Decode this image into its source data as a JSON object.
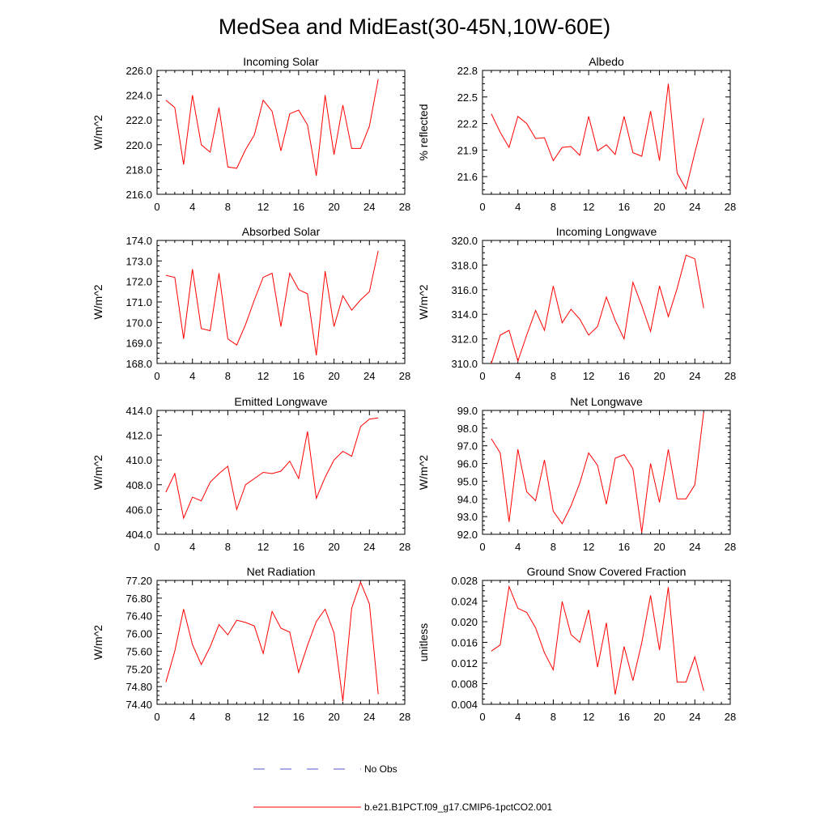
{
  "page": {
    "title": "MedSea and MidEast(30-45N,10W-60E)"
  },
  "legend": [
    {
      "label": "No Obs",
      "color": "#5555cc",
      "style": "dashed"
    },
    {
      "label": "b.e21.B1PCT.f09_g17.CMIP6-1pctCO2.001",
      "color": "#ff0000",
      "style": "solid"
    }
  ],
  "chart_data": [
    {
      "type": "line",
      "title": "Incoming Solar",
      "ylabel": "W/m^2",
      "xlim": [
        0,
        28
      ],
      "ylim": [
        216,
        226
      ],
      "xticks": [
        "0",
        "4",
        "8",
        "12",
        "16",
        "20",
        "24",
        "28"
      ],
      "yticks": [
        "216.0",
        "218.0",
        "220.0",
        "222.0",
        "224.0",
        "226.0"
      ],
      "series": [
        {
          "color": "#ff0000",
          "x": [
            1,
            2,
            3,
            4,
            5,
            6,
            7,
            8,
            9,
            10,
            11,
            12,
            13,
            14,
            15,
            16,
            17,
            18,
            19,
            20,
            21,
            22,
            23,
            24,
            25
          ],
          "y": [
            223.6,
            223.0,
            218.4,
            224.0,
            220.0,
            219.4,
            223.0,
            218.2,
            218.1,
            219.6,
            220.8,
            223.6,
            222.7,
            219.5,
            222.5,
            222.8,
            221.6,
            217.5,
            224.0,
            219.2,
            223.2,
            219.7,
            219.7,
            221.5,
            225.3
          ]
        }
      ]
    },
    {
      "type": "line",
      "title": "Albedo",
      "ylabel": "% reflected",
      "xlim": [
        0,
        28
      ],
      "ylim": [
        21.4,
        22.8
      ],
      "xticks": [
        "0",
        "4",
        "8",
        "12",
        "16",
        "20",
        "24",
        "28"
      ],
      "yticks": [
        "21.6",
        "21.9",
        "22.2",
        "22.5",
        "22.8"
      ],
      "series": [
        {
          "color": "#ff0000",
          "x": [
            1,
            2,
            3,
            4,
            5,
            6,
            7,
            8,
            9,
            10,
            11,
            12,
            13,
            14,
            15,
            16,
            17,
            18,
            19,
            20,
            21,
            22,
            23,
            24,
            25
          ],
          "y": [
            22.31,
            22.1,
            21.93,
            22.28,
            22.2,
            22.03,
            22.04,
            21.78,
            21.93,
            21.94,
            21.84,
            22.28,
            21.89,
            21.96,
            21.85,
            22.28,
            21.87,
            21.83,
            22.34,
            21.78,
            22.65,
            21.64,
            21.46,
            21.87,
            22.26
          ]
        }
      ]
    },
    {
      "type": "line",
      "title": "Absorbed Solar",
      "ylabel": "W/m^2",
      "xlim": [
        0,
        28
      ],
      "ylim": [
        168,
        174
      ],
      "xticks": [
        "0",
        "4",
        "8",
        "12",
        "16",
        "20",
        "24",
        "28"
      ],
      "yticks": [
        "168.0",
        "169.0",
        "170.0",
        "171.0",
        "172.0",
        "173.0",
        "174.0"
      ],
      "series": [
        {
          "color": "#ff0000",
          "x": [
            1,
            2,
            3,
            4,
            5,
            6,
            7,
            8,
            9,
            10,
            11,
            12,
            13,
            14,
            15,
            16,
            17,
            18,
            19,
            20,
            21,
            22,
            23,
            24,
            25
          ],
          "y": [
            172.3,
            172.2,
            169.2,
            172.6,
            169.7,
            169.6,
            172.4,
            169.2,
            168.9,
            169.9,
            171.1,
            172.2,
            172.4,
            169.8,
            172.4,
            171.6,
            171.4,
            168.4,
            172.5,
            169.8,
            171.3,
            170.6,
            171.1,
            171.5,
            173.5
          ]
        }
      ]
    },
    {
      "type": "line",
      "title": "Incoming Longwave",
      "ylabel": "W/m^2",
      "xlim": [
        0,
        28
      ],
      "ylim": [
        310,
        320
      ],
      "xticks": [
        "0",
        "4",
        "8",
        "12",
        "16",
        "20",
        "24",
        "28"
      ],
      "yticks": [
        "310.0",
        "312.0",
        "314.0",
        "316.0",
        "318.0",
        "320.0"
      ],
      "series": [
        {
          "color": "#ff0000",
          "x": [
            1,
            2,
            3,
            4,
            5,
            6,
            7,
            8,
            9,
            10,
            11,
            12,
            13,
            14,
            15,
            16,
            17,
            18,
            19,
            20,
            21,
            22,
            23,
            24,
            25
          ],
          "y": [
            310.0,
            312.3,
            312.7,
            310.2,
            312.3,
            314.3,
            312.7,
            316.3,
            313.3,
            314.4,
            313.6,
            312.3,
            313.0,
            315.4,
            313.5,
            312.0,
            316.6,
            314.7,
            312.6,
            316.3,
            313.8,
            316.1,
            318.8,
            318.5,
            314.5
          ]
        }
      ]
    },
    {
      "type": "line",
      "title": "Emitted Longwave",
      "ylabel": "W/m^2",
      "xlim": [
        0,
        28
      ],
      "ylim": [
        404,
        414
      ],
      "xticks": [
        "0",
        "4",
        "8",
        "12",
        "16",
        "20",
        "24",
        "28"
      ],
      "yticks": [
        "404.0",
        "406.0",
        "408.0",
        "410.0",
        "412.0",
        "414.0"
      ],
      "series": [
        {
          "color": "#ff0000",
          "x": [
            1,
            2,
            3,
            4,
            5,
            6,
            7,
            8,
            9,
            10,
            11,
            12,
            13,
            14,
            15,
            16,
            17,
            18,
            19,
            20,
            21,
            22,
            23,
            24,
            25
          ],
          "y": [
            407.4,
            408.9,
            405.3,
            407.0,
            406.7,
            408.2,
            408.9,
            409.5,
            406.0,
            408.0,
            408.5,
            409.0,
            408.9,
            409.1,
            409.9,
            408.5,
            412.3,
            406.9,
            408.6,
            410.0,
            410.7,
            410.3,
            412.7,
            413.3,
            413.4
          ]
        }
      ]
    },
    {
      "type": "line",
      "title": "Net Longwave",
      "ylabel": "W/m^2",
      "xlim": [
        0,
        28
      ],
      "ylim": [
        92,
        99
      ],
      "xticks": [
        "0",
        "4",
        "8",
        "12",
        "16",
        "20",
        "24",
        "28"
      ],
      "yticks": [
        "92.0",
        "93.0",
        "94.0",
        "95.0",
        "96.0",
        "97.0",
        "98.0",
        "99.0"
      ],
      "series": [
        {
          "color": "#ff0000",
          "x": [
            1,
            2,
            3,
            4,
            5,
            6,
            7,
            8,
            9,
            10,
            11,
            12,
            13,
            14,
            15,
            16,
            17,
            18,
            19,
            20,
            21,
            22,
            23,
            24,
            25
          ],
          "y": [
            97.4,
            96.6,
            92.7,
            96.8,
            94.4,
            93.9,
            96.2,
            93.3,
            92.6,
            93.6,
            94.9,
            96.6,
            95.9,
            93.7,
            96.3,
            96.5,
            95.7,
            92.1,
            96.0,
            93.8,
            96.8,
            94.0,
            94.0,
            94.8,
            98.9
          ]
        }
      ]
    },
    {
      "type": "line",
      "title": "Net Radiation",
      "ylabel": "W/m^2",
      "xlim": [
        0,
        28
      ],
      "ylim": [
        74.4,
        77.2
      ],
      "xticks": [
        "0",
        "4",
        "8",
        "12",
        "16",
        "20",
        "24",
        "28"
      ],
      "yticks": [
        "74.40",
        "74.80",
        "75.20",
        "75.60",
        "76.00",
        "76.40",
        "76.80",
        "77.20"
      ],
      "series": [
        {
          "color": "#ff0000",
          "x": [
            1,
            2,
            3,
            4,
            5,
            6,
            7,
            8,
            9,
            10,
            11,
            12,
            13,
            14,
            15,
            16,
            17,
            18,
            19,
            20,
            21,
            22,
            23,
            24,
            25
          ],
          "y": [
            74.9,
            75.6,
            76.55,
            75.75,
            75.3,
            75.7,
            76.2,
            75.97,
            76.3,
            76.25,
            76.17,
            75.55,
            76.5,
            76.12,
            76.03,
            75.12,
            75.73,
            76.27,
            76.55,
            76.01,
            74.47,
            76.57,
            77.16,
            76.67,
            74.63
          ]
        }
      ]
    },
    {
      "type": "line",
      "title": "Ground Snow Covered Fraction",
      "ylabel": "unitless",
      "xlim": [
        0,
        28
      ],
      "ylim": [
        0.004,
        0.028
      ],
      "xticks": [
        "0",
        "4",
        "8",
        "12",
        "16",
        "20",
        "24",
        "28"
      ],
      "yticks": [
        "0.004",
        "0.008",
        "0.012",
        "0.016",
        "0.020",
        "0.024",
        "0.028"
      ],
      "series": [
        {
          "color": "#ff0000",
          "x": [
            1,
            2,
            3,
            4,
            5,
            6,
            7,
            8,
            9,
            10,
            11,
            12,
            13,
            14,
            15,
            16,
            17,
            18,
            19,
            20,
            21,
            22,
            23,
            24,
            25
          ],
          "y": [
            0.0143,
            0.0155,
            0.0268,
            0.0226,
            0.0218,
            0.0188,
            0.014,
            0.0107,
            0.0239,
            0.0175,
            0.016,
            0.0223,
            0.0112,
            0.0198,
            0.0059,
            0.0152,
            0.0086,
            0.0159,
            0.0251,
            0.0145,
            0.0267,
            0.0083,
            0.0083,
            0.0132,
            0.0066
          ]
        }
      ]
    }
  ]
}
